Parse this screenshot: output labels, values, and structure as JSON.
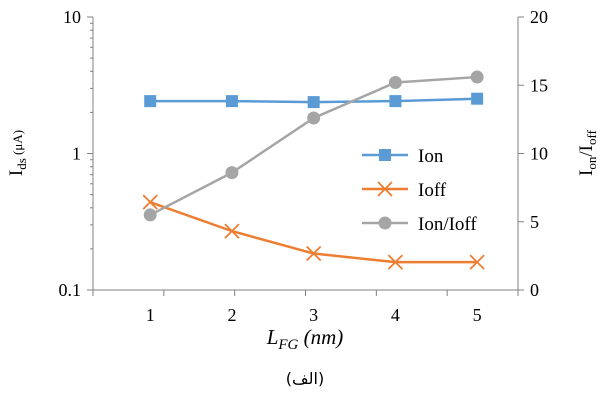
{
  "chart_data": {
    "type": "line",
    "x": [
      1,
      2,
      3,
      4,
      5
    ],
    "xlabel": {
      "main": "L",
      "sub": "FG",
      "rest": " (nm)"
    },
    "xticks": [
      "1",
      "2",
      "3",
      "4",
      "5"
    ],
    "xlim": [
      0.3,
      5.5
    ],
    "ylabel_left": {
      "main": "I",
      "sub": "ds",
      "unit": " (μA)"
    },
    "ylabel_right": {
      "a": "I",
      "a_sub": "on",
      "slash": "/",
      "b": "I",
      "b_sub": "off"
    },
    "y_left": {
      "scale": "log",
      "ylim": [
        0.1,
        10
      ],
      "ticks": [
        "0.1",
        "1",
        "10"
      ]
    },
    "y_right": {
      "scale": "linear",
      "ylim": [
        0,
        20
      ],
      "ticks": [
        "0",
        "5",
        "10",
        "15",
        "20"
      ]
    },
    "series": [
      {
        "name": "Ion",
        "axis": "left",
        "marker": "square",
        "color": "#5b9bd5",
        "values": [
          2.42,
          2.42,
          2.38,
          2.42,
          2.52
        ]
      },
      {
        "name": "Ioff",
        "axis": "left",
        "marker": "x",
        "color": "#ed7d31",
        "values": [
          0.44,
          0.27,
          0.185,
          0.16,
          0.16
        ]
      },
      {
        "name": "Ion/Ioff",
        "axis": "right",
        "marker": "circle",
        "color": "#a5a5a5",
        "values": [
          5.5,
          8.6,
          12.6,
          15.2,
          15.6
        ]
      }
    ],
    "grid": false,
    "legend_position": "right-center"
  },
  "caption": "(الف)"
}
